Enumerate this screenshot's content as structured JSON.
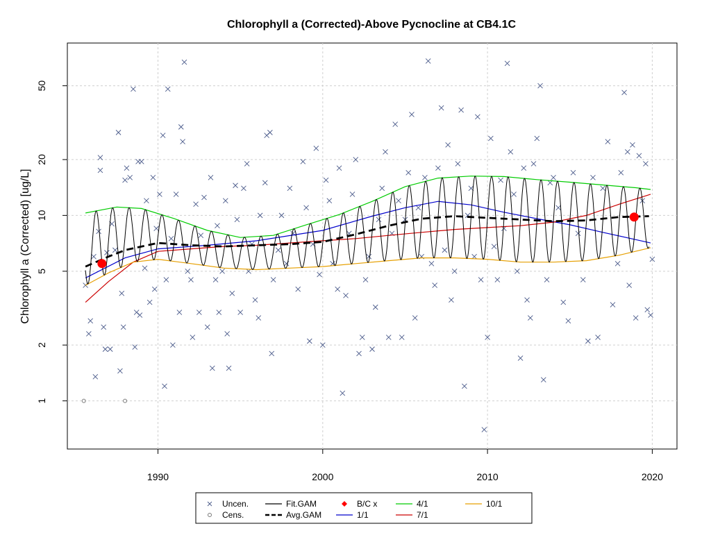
{
  "chart_data": {
    "type": "scatter",
    "title": "Chlorophyll a (Corrected)-Above Pycnocline at CB4.1C",
    "xlabel": "",
    "ylabel": "Chlorophyll a (Corrected) [ug/L]",
    "y_scale": "log",
    "xlim": [
      1984.5,
      2021.5
    ],
    "ylim": [
      0.55,
      85
    ],
    "grid": true,
    "x_ticks": [
      1990,
      2000,
      2010,
      2020
    ],
    "y_ticks": [
      1,
      2,
      5,
      10,
      20,
      50
    ],
    "x_tick_labels": [
      "1990",
      "2000",
      "2010",
      "2020"
    ],
    "y_tick_labels": [
      "1",
      "2",
      "5",
      "10",
      "20",
      "50"
    ],
    "legend_placement": "bottom-outside",
    "legend": [
      {
        "label": "Uncen.",
        "kind": "x-marker",
        "color": "#4a5a8a"
      },
      {
        "label": "Cens.",
        "kind": "circle-marker",
        "color": "#777777"
      },
      {
        "label": "Fit.GAM",
        "kind": "line",
        "color": "#000000"
      },
      {
        "label": "Avg.GAM",
        "kind": "dashed-line",
        "color": "#000000"
      },
      {
        "label": "B/C x",
        "kind": "diamond-marker",
        "color": "#ff0000"
      },
      {
        "label": "1/1",
        "kind": "line",
        "color": "#0000cc"
      },
      {
        "label": "4/1",
        "kind": "line",
        "color": "#00cc00"
      },
      {
        "label": "7/1",
        "kind": "line",
        "color": "#cc0000"
      },
      {
        "label": "10/1",
        "kind": "line",
        "color": "#e69f00"
      }
    ],
    "uncensored_points": [
      [
        1985.6,
        4.2
      ],
      [
        1985.8,
        2.3
      ],
      [
        1985.9,
        2.7
      ],
      [
        1986.1,
        6.0
      ],
      [
        1986.2,
        1.35
      ],
      [
        1986.4,
        8.2
      ],
      [
        1986.5,
        17.5
      ],
      [
        1986.5,
        20.5
      ],
      [
        1986.7,
        2.5
      ],
      [
        1986.8,
        1.9
      ],
      [
        1986.9,
        6.3
      ],
      [
        1987.1,
        1.9
      ],
      [
        1987.2,
        9.0
      ],
      [
        1987.4,
        6.5
      ],
      [
        1987.6,
        28.0
      ],
      [
        1987.7,
        1.45
      ],
      [
        1987.8,
        3.8
      ],
      [
        1987.9,
        2.5
      ],
      [
        1988.0,
        15.5
      ],
      [
        1988.1,
        18.0
      ],
      [
        1988.3,
        16.0
      ],
      [
        1988.5,
        48.0
      ],
      [
        1988.6,
        1.95
      ],
      [
        1988.7,
        3.0
      ],
      [
        1988.8,
        19.5
      ],
      [
        1988.9,
        2.9
      ],
      [
        1989.0,
        19.5
      ],
      [
        1989.2,
        5.2
      ],
      [
        1989.3,
        12.0
      ],
      [
        1989.5,
        3.4
      ],
      [
        1989.7,
        16.0
      ],
      [
        1989.8,
        4.0
      ],
      [
        1989.9,
        8.5
      ],
      [
        1990.1,
        13.0
      ],
      [
        1990.3,
        27.0
      ],
      [
        1990.4,
        1.2
      ],
      [
        1990.5,
        4.5
      ],
      [
        1990.6,
        48.0
      ],
      [
        1990.8,
        7.5
      ],
      [
        1990.9,
        2.0
      ],
      [
        1991.1,
        13.0
      ],
      [
        1991.3,
        3.0
      ],
      [
        1991.4,
        30.0
      ],
      [
        1991.5,
        25.0
      ],
      [
        1991.6,
        67.0
      ],
      [
        1991.8,
        5.0
      ],
      [
        1992.0,
        4.5
      ],
      [
        1992.1,
        2.2
      ],
      [
        1992.3,
        11.5
      ],
      [
        1992.5,
        3.0
      ],
      [
        1992.6,
        7.8
      ],
      [
        1992.8,
        12.5
      ],
      [
        1993.0,
        2.5
      ],
      [
        1993.2,
        16.0
      ],
      [
        1993.3,
        1.5
      ],
      [
        1993.5,
        4.5
      ],
      [
        1993.6,
        8.8
      ],
      [
        1993.7,
        3.0
      ],
      [
        1993.9,
        5.0
      ],
      [
        1994.1,
        12.0
      ],
      [
        1994.2,
        2.3
      ],
      [
        1994.3,
        1.5
      ],
      [
        1994.5,
        3.8
      ],
      [
        1994.7,
        14.5
      ],
      [
        1994.8,
        9.5
      ],
      [
        1995.0,
        3.0
      ],
      [
        1995.2,
        14.0
      ],
      [
        1995.4,
        19.0
      ],
      [
        1995.5,
        5.0
      ],
      [
        1995.7,
        7.0
      ],
      [
        1995.9,
        3.5
      ],
      [
        1996.1,
        2.8
      ],
      [
        1996.2,
        10.0
      ],
      [
        1996.5,
        15.0
      ],
      [
        1996.6,
        27.0
      ],
      [
        1996.8,
        28.0
      ],
      [
        1996.9,
        1.8
      ],
      [
        1997.0,
        4.5
      ],
      [
        1997.3,
        6.5
      ],
      [
        1997.5,
        10.0
      ],
      [
        1997.8,
        5.5
      ],
      [
        1998.0,
        14.0
      ],
      [
        1998.2,
        8.0
      ],
      [
        1998.5,
        4.0
      ],
      [
        1998.8,
        19.5
      ],
      [
        1999.0,
        11.0
      ],
      [
        1999.2,
        2.1
      ],
      [
        1999.4,
        7.0
      ],
      [
        1999.6,
        23.0
      ],
      [
        1999.8,
        4.8
      ],
      [
        2000.0,
        2.0
      ],
      [
        2000.2,
        15.5
      ],
      [
        2000.4,
        12.0
      ],
      [
        2000.6,
        5.5
      ],
      [
        2000.9,
        4.0
      ],
      [
        2001.0,
        18.0
      ],
      [
        2001.2,
        1.1
      ],
      [
        2001.4,
        3.7
      ],
      [
        2001.6,
        8.0
      ],
      [
        2001.8,
        13.0
      ],
      [
        2002.0,
        20.0
      ],
      [
        2002.2,
        1.8
      ],
      [
        2002.4,
        2.2
      ],
      [
        2002.6,
        4.5
      ],
      [
        2002.8,
        6.0
      ],
      [
        2003.0,
        1.9
      ],
      [
        2003.2,
        3.2
      ],
      [
        2003.4,
        9.5
      ],
      [
        2003.6,
        14.0
      ],
      [
        2003.8,
        22.0
      ],
      [
        2004.0,
        2.2
      ],
      [
        2004.2,
        8.0
      ],
      [
        2004.4,
        31.0
      ],
      [
        2004.6,
        12.0
      ],
      [
        2004.8,
        2.2
      ],
      [
        2005.0,
        9.5
      ],
      [
        2005.2,
        17.0
      ],
      [
        2005.4,
        35.0
      ],
      [
        2005.6,
        2.8
      ],
      [
        2005.8,
        11.0
      ],
      [
        2006.0,
        6.0
      ],
      [
        2006.2,
        16.0
      ],
      [
        2006.4,
        68.0
      ],
      [
        2006.6,
        5.5
      ],
      [
        2006.8,
        4.2
      ],
      [
        2007.0,
        18.0
      ],
      [
        2007.2,
        38.0
      ],
      [
        2007.4,
        6.5
      ],
      [
        2007.6,
        24.0
      ],
      [
        2007.8,
        3.5
      ],
      [
        2008.0,
        5.0
      ],
      [
        2008.2,
        19.0
      ],
      [
        2008.4,
        37.0
      ],
      [
        2008.6,
        1.2
      ],
      [
        2008.8,
        10.0
      ],
      [
        2009.0,
        14.0
      ],
      [
        2009.2,
        6.0
      ],
      [
        2009.4,
        34.0
      ],
      [
        2009.6,
        4.5
      ],
      [
        2009.8,
        0.7
      ],
      [
        2010.0,
        2.2
      ],
      [
        2010.2,
        26.0
      ],
      [
        2010.4,
        6.8
      ],
      [
        2010.6,
        4.5
      ],
      [
        2010.8,
        15.5
      ],
      [
        2011.0,
        8.5
      ],
      [
        2011.2,
        66.0
      ],
      [
        2011.4,
        22.0
      ],
      [
        2011.6,
        13.0
      ],
      [
        2011.8,
        5.0
      ],
      [
        2012.0,
        1.7
      ],
      [
        2012.2,
        18.0
      ],
      [
        2012.4,
        3.5
      ],
      [
        2012.6,
        2.8
      ],
      [
        2012.8,
        19.0
      ],
      [
        2013.0,
        26.0
      ],
      [
        2013.2,
        50.0
      ],
      [
        2013.4,
        1.3
      ],
      [
        2013.6,
        4.5
      ],
      [
        2013.8,
        15.0
      ],
      [
        2014.0,
        16.0
      ],
      [
        2014.3,
        11.0
      ],
      [
        2014.6,
        3.4
      ],
      [
        2014.9,
        2.7
      ],
      [
        2015.2,
        17.0
      ],
      [
        2015.5,
        8.0
      ],
      [
        2015.8,
        4.5
      ],
      [
        2016.1,
        2.1
      ],
      [
        2016.4,
        16.0
      ],
      [
        2016.7,
        2.2
      ],
      [
        2017.0,
        14.0
      ],
      [
        2017.3,
        25.0
      ],
      [
        2017.6,
        3.3
      ],
      [
        2017.9,
        5.5
      ],
      [
        2018.1,
        17.0
      ],
      [
        2018.3,
        46.0
      ],
      [
        2018.5,
        22.0
      ],
      [
        2018.6,
        4.2
      ],
      [
        2018.8,
        24.0
      ],
      [
        2019.0,
        2.8
      ],
      [
        2019.2,
        21.0
      ],
      [
        2019.4,
        12.0
      ],
      [
        2019.6,
        19.0
      ],
      [
        2019.7,
        3.1
      ],
      [
        2019.9,
        2.9
      ],
      [
        2020.0,
        5.8
      ]
    ],
    "censored_points": [
      [
        1985.5,
        1.0
      ],
      [
        1988.0,
        1.0
      ]
    ],
    "bc_points": [
      [
        1986.6,
        5.5
      ],
      [
        2018.9,
        9.8
      ]
    ],
    "avg_gam": [
      [
        1985.6,
        5.3
      ],
      [
        1987.0,
        6.0
      ],
      [
        1988.0,
        6.5
      ],
      [
        1990.0,
        7.1
      ],
      [
        1992.0,
        6.9
      ],
      [
        1994.0,
        6.8
      ],
      [
        1996.0,
        6.9
      ],
      [
        1998.0,
        7.0
      ],
      [
        2000.0,
        7.2
      ],
      [
        2002.0,
        7.9
      ],
      [
        2004.0,
        8.8
      ],
      [
        2006.0,
        9.6
      ],
      [
        2008.0,
        9.9
      ],
      [
        2010.0,
        9.7
      ],
      [
        2012.0,
        9.5
      ],
      [
        2014.0,
        9.3
      ],
      [
        2016.0,
        9.4
      ],
      [
        2018.0,
        9.8
      ],
      [
        2019.8,
        9.9
      ]
    ],
    "lines": {
      "1/1": [
        [
          1985.6,
          4.6
        ],
        [
          1988.0,
          5.9
        ],
        [
          1990.0,
          6.6
        ],
        [
          1993.0,
          6.9
        ],
        [
          1996.0,
          7.3
        ],
        [
          2000.0,
          8.3
        ],
        [
          2003.0,
          9.9
        ],
        [
          2005.0,
          11.0
        ],
        [
          2007.0,
          11.9
        ],
        [
          2009.0,
          11.4
        ],
        [
          2011.0,
          10.4
        ],
        [
          2013.0,
          9.6
        ],
        [
          2015.0,
          8.9
        ],
        [
          2017.0,
          8.1
        ],
        [
          2019.0,
          7.4
        ],
        [
          2019.9,
          7.1
        ]
      ],
      "4/1": [
        [
          1985.6,
          10.3
        ],
        [
          1987.5,
          11.1
        ],
        [
          1989.0,
          10.9
        ],
        [
          1991.0,
          9.6
        ],
        [
          1993.0,
          8.3
        ],
        [
          1995.0,
          7.6
        ],
        [
          1997.0,
          7.8
        ],
        [
          1999.0,
          8.9
        ],
        [
          2001.0,
          10.1
        ],
        [
          2003.0,
          11.9
        ],
        [
          2005.0,
          14.3
        ],
        [
          2007.0,
          15.9
        ],
        [
          2009.0,
          16.3
        ],
        [
          2011.0,
          16.2
        ],
        [
          2013.0,
          15.6
        ],
        [
          2015.0,
          15.1
        ],
        [
          2017.0,
          14.6
        ],
        [
          2019.0,
          14.1
        ],
        [
          2019.9,
          13.8
        ]
      ],
      "7/1": [
        [
          1985.6,
          3.4
        ],
        [
          1987.0,
          4.4
        ],
        [
          1988.5,
          5.6
        ],
        [
          1990.0,
          6.4
        ],
        [
          1992.0,
          6.6
        ],
        [
          1994.0,
          6.8
        ],
        [
          1996.0,
          6.9
        ],
        [
          1998.0,
          7.1
        ],
        [
          2000.0,
          7.3
        ],
        [
          2002.0,
          7.5
        ],
        [
          2004.0,
          7.8
        ],
        [
          2006.0,
          8.1
        ],
        [
          2008.0,
          8.4
        ],
        [
          2010.0,
          8.6
        ],
        [
          2012.0,
          8.8
        ],
        [
          2014.0,
          9.2
        ],
        [
          2016.0,
          10.0
        ],
        [
          2018.0,
          11.5
        ],
        [
          2019.9,
          13.0
        ]
      ],
      "10/1": [
        [
          1985.6,
          4.2
        ],
        [
          1987.0,
          4.9
        ],
        [
          1988.5,
          5.6
        ],
        [
          1990.0,
          5.8
        ],
        [
          1992.0,
          5.5
        ],
        [
          1994.0,
          5.2
        ],
        [
          1996.0,
          5.1
        ],
        [
          1998.0,
          5.2
        ],
        [
          2000.0,
          5.3
        ],
        [
          2002.0,
          5.5
        ],
        [
          2004.0,
          5.7
        ],
        [
          2006.0,
          5.9
        ],
        [
          2008.0,
          5.9
        ],
        [
          2010.0,
          5.8
        ],
        [
          2012.0,
          5.6
        ],
        [
          2014.0,
          5.6
        ],
        [
          2016.0,
          5.7
        ],
        [
          2018.0,
          6.1
        ],
        [
          2019.9,
          6.7
        ]
      ]
    }
  }
}
